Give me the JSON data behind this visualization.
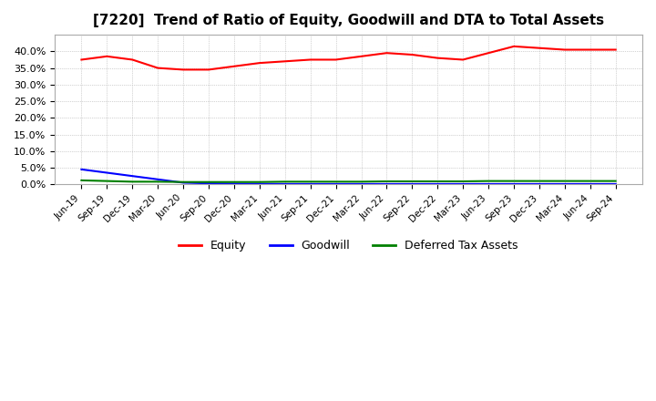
{
  "title": "[7220]  Trend of Ratio of Equity, Goodwill and DTA to Total Assets",
  "x_labels": [
    "Jun-19",
    "Sep-19",
    "Dec-19",
    "Mar-20",
    "Jun-20",
    "Sep-20",
    "Dec-20",
    "Mar-21",
    "Jun-21",
    "Sep-21",
    "Dec-21",
    "Mar-22",
    "Jun-22",
    "Sep-22",
    "Dec-22",
    "Mar-23",
    "Jun-23",
    "Sep-23",
    "Dec-23",
    "Mar-24",
    "Jun-24",
    "Sep-24"
  ],
  "equity": [
    37.5,
    38.5,
    37.5,
    35.0,
    34.5,
    34.5,
    35.5,
    36.5,
    37.0,
    37.5,
    37.5,
    38.5,
    39.5,
    39.0,
    38.0,
    37.5,
    39.5,
    41.5,
    41.0,
    40.5,
    40.5,
    40.5
  ],
  "goodwill": [
    4.5,
    3.5,
    2.5,
    1.5,
    0.5,
    0.3,
    0.2,
    0.15,
    0.1,
    0.1,
    0.1,
    0.1,
    0.1,
    0.1,
    0.1,
    0.1,
    0.1,
    0.1,
    0.1,
    0.1,
    0.1,
    0.1
  ],
  "dta": [
    1.2,
    1.0,
    0.8,
    0.8,
    0.7,
    0.7,
    0.7,
    0.7,
    0.8,
    0.8,
    0.8,
    0.8,
    0.9,
    0.9,
    0.9,
    0.9,
    1.0,
    1.0,
    1.0,
    1.0,
    1.0,
    1.0
  ],
  "equity_color": "#ff0000",
  "goodwill_color": "#0000ff",
  "dta_color": "#008000",
  "ylim": [
    0,
    45
  ],
  "yticks": [
    0.0,
    5.0,
    10.0,
    15.0,
    20.0,
    25.0,
    30.0,
    35.0,
    40.0
  ],
  "background_color": "#ffffff",
  "grid_color": "#aaaaaa",
  "legend_labels": [
    "Equity",
    "Goodwill",
    "Deferred Tax Assets"
  ]
}
